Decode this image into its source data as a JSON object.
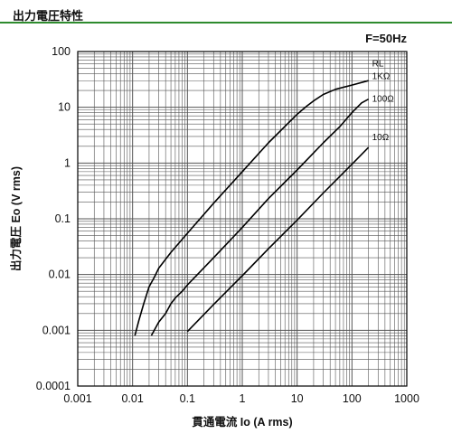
{
  "header": {
    "title": "出力電圧特性"
  },
  "chart_data": {
    "type": "line",
    "title": "",
    "annotation": "F=50Hz",
    "xlabel": "貫通電流 Io (A rms)",
    "ylabel": "出力電圧 Eo (V rms)",
    "xscale": "log",
    "yscale": "log",
    "xlim": [
      0.001,
      1000
    ],
    "ylim": [
      0.0001,
      100
    ],
    "xticks": [
      "0.001",
      "0.01",
      "0.1",
      "1",
      "10",
      "100",
      "1000"
    ],
    "yticks": [
      "0.0001",
      "0.001",
      "0.01",
      "0.1",
      "1",
      "10",
      "100"
    ],
    "grid": true,
    "legend": "curve labels at right end of each curve",
    "colors": {
      "grid": "#555555",
      "line": "#000000",
      "header_rule": "#2e8b2e"
    },
    "series": [
      {
        "name": "RL",
        "label": "",
        "label_at": [
          200,
          60
        ],
        "x": [],
        "y": []
      },
      {
        "name": "1KΩ",
        "label": "1KΩ",
        "label_at": [
          200,
          36
        ],
        "x": [
          0.011,
          0.013,
          0.016,
          0.02,
          0.025,
          0.03,
          0.05,
          0.1,
          0.3,
          1,
          3,
          10,
          15,
          20,
          30,
          50,
          100,
          200
        ],
        "y": [
          0.0008,
          0.0015,
          0.003,
          0.006,
          0.009,
          0.013,
          0.025,
          0.055,
          0.19,
          0.7,
          2.3,
          7.5,
          10.5,
          13,
          17,
          21,
          25,
          30
        ]
      },
      {
        "name": "100Ω",
        "label": "100Ω",
        "label_at": [
          200,
          14
        ],
        "x": [
          0.022,
          0.03,
          0.04,
          0.05,
          0.06,
          0.08,
          0.1,
          0.3,
          1,
          3,
          10,
          30,
          60,
          100,
          150,
          200
        ],
        "y": [
          0.0008,
          0.0014,
          0.002,
          0.003,
          0.0038,
          0.005,
          0.0065,
          0.02,
          0.07,
          0.23,
          0.75,
          2.3,
          4.5,
          8,
          12,
          14
        ]
      },
      {
        "name": "10Ω",
        "label": "10Ω",
        "label_at": [
          200,
          2.9
        ],
        "x": [
          0.1,
          0.3,
          1,
          3,
          10,
          30,
          100,
          200
        ],
        "y": [
          0.00095,
          0.0029,
          0.0095,
          0.029,
          0.095,
          0.29,
          0.95,
          1.9
        ]
      }
    ]
  }
}
